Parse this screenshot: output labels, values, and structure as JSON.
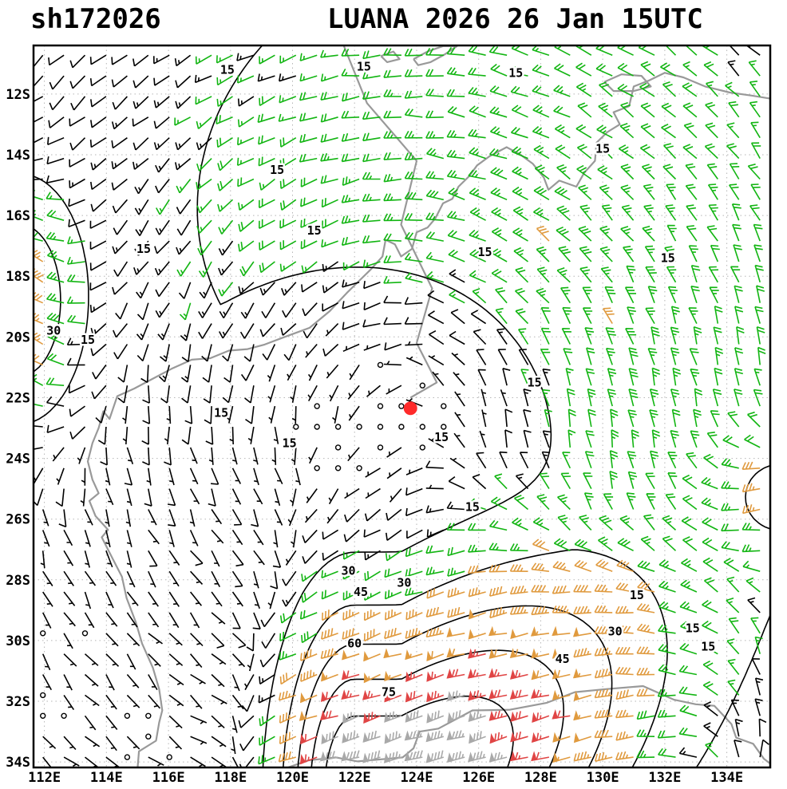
{
  "header": {
    "left_title": "sh172026",
    "right_title": "LUANA 2026 26 Jan 15UTC"
  },
  "axes": {
    "lon_min": 111.65,
    "lon_max": 135.4,
    "lat_max": -10.4,
    "lat_min": -34.18,
    "x_ticks": [
      {
        "lon": 112,
        "label": "112E"
      },
      {
        "lon": 114,
        "label": "114E"
      },
      {
        "lon": 116,
        "label": "116E"
      },
      {
        "lon": 118,
        "label": "118E"
      },
      {
        "lon": 120,
        "label": "120E"
      },
      {
        "lon": 122,
        "label": "122E"
      },
      {
        "lon": 124,
        "label": "124E"
      },
      {
        "lon": 126,
        "label": "126E"
      },
      {
        "lon": 128,
        "label": "128E"
      },
      {
        "lon": 130,
        "label": "130E"
      },
      {
        "lon": 132,
        "label": "132E"
      },
      {
        "lon": 134,
        "label": "134E"
      }
    ],
    "y_ticks": [
      {
        "lat": -12,
        "label": "12S"
      },
      {
        "lat": -14,
        "label": "14S"
      },
      {
        "lat": -16,
        "label": "16S"
      },
      {
        "lat": -18,
        "label": "18S"
      },
      {
        "lat": -20,
        "label": "20S"
      },
      {
        "lat": -22,
        "label": "22S"
      },
      {
        "lat": -24,
        "label": "24S"
      },
      {
        "lat": -26,
        "label": "26S"
      },
      {
        "lat": -28,
        "label": "28S"
      },
      {
        "lat": -30,
        "label": "30S"
      },
      {
        "lat": -32,
        "label": "32S"
      },
      {
        "lat": -34,
        "label": "34S"
      }
    ]
  },
  "colors": {
    "background": "#ffffff",
    "frame": "#000000",
    "grid": "#b5b5b5",
    "coast": "#999999",
    "contour": "#000000",
    "label_halo": "#ffffff"
  },
  "legend_semantics": {
    "calm": "wind < 5 kt drawn as open circle",
    "barb_speed_colors": [
      {
        "range_kt": "0-15",
        "color": "#000000"
      },
      {
        "range_kt": "15-30",
        "color": "#12b512"
      },
      {
        "range_kt": "30-60",
        "color": "#e09a3e"
      },
      {
        "range_kt": "60-75",
        "color": "#e04545"
      },
      {
        "range_kt": "75+",
        "color": "#a9a9a9"
      }
    ]
  },
  "chart_data": {
    "type": "wind-barb-analysis-map",
    "storm_id": "sh172026",
    "title": "LUANA 2026 26 Jan 15UTC",
    "storm_center": {
      "lon": 123.8,
      "lat": -22.35,
      "marker_color": "#ff2a2a",
      "marker_radius_px": 8.5
    },
    "isotach_levels_kt": [
      15,
      30,
      45,
      60,
      75
    ],
    "speed_color_thresholds": [
      {
        "max": 15,
        "color": "#000000"
      },
      {
        "max": 30,
        "color": "#12b512"
      },
      {
        "max": 60,
        "color": "#e09a3e"
      },
      {
        "max": 75,
        "color": "#e04545"
      },
      {
        "max": 999,
        "color": "#a9a9a9"
      }
    ],
    "contour_labels": [
      {
        "v": 15,
        "lon": 117.9,
        "lat": -11.2
      },
      {
        "v": 15,
        "lon": 122.3,
        "lat": -11.1
      },
      {
        "v": 15,
        "lon": 127.2,
        "lat": -11.3
      },
      {
        "v": 15,
        "lon": 130.0,
        "lat": -13.8
      },
      {
        "v": 15,
        "lon": 119.5,
        "lat": -14.5
      },
      {
        "v": 15,
        "lon": 115.2,
        "lat": -17.1
      },
      {
        "v": 15,
        "lon": 120.7,
        "lat": -16.5
      },
      {
        "v": 15,
        "lon": 126.2,
        "lat": -17.2
      },
      {
        "v": 15,
        "lon": 132.1,
        "lat": -17.4
      },
      {
        "v": 15,
        "lon": 113.4,
        "lat": -20.1
      },
      {
        "v": 15,
        "lon": 127.8,
        "lat": -21.5
      },
      {
        "v": 15,
        "lon": 117.7,
        "lat": -22.5
      },
      {
        "v": 15,
        "lon": 119.9,
        "lat": -23.5
      },
      {
        "v": 15,
        "lon": 124.8,
        "lat": -23.3
      },
      {
        "v": 15,
        "lon": 125.8,
        "lat": -25.6
      },
      {
        "v": 15,
        "lon": 131.1,
        "lat": -28.5
      },
      {
        "v": 15,
        "lon": 132.9,
        "lat": -29.6
      },
      {
        "v": 15,
        "lon": 133.4,
        "lat": -30.2
      },
      {
        "v": 30,
        "lon": 112.3,
        "lat": -19.8
      },
      {
        "v": 30,
        "lon": 121.8,
        "lat": -27.7
      },
      {
        "v": 30,
        "lon": 123.6,
        "lat": -28.1
      },
      {
        "v": 30,
        "lon": 130.4,
        "lat": -29.7
      },
      {
        "v": 45,
        "lon": 122.2,
        "lat": -28.4
      },
      {
        "v": 45,
        "lon": 128.7,
        "lat": -30.6
      },
      {
        "v": 60,
        "lon": 122.0,
        "lat": -30.1
      },
      {
        "v": 75,
        "lon": 123.1,
        "lat": -31.7
      }
    ],
    "barb_grid": {
      "lon_start": 111.95,
      "lat_start": -10.72,
      "step": 0.68,
      "cols": 35,
      "rows": 35
    },
    "wind_model": {
      "vortex": {
        "center": [
          123.8,
          -22.35
        ],
        "rm": 7.0,
        "vmax": 26,
        "inner_exp": 1.25,
        "decay": 14,
        "asym_base": 0.7,
        "asym_amp": 0.45,
        "asym_phase_deg": 45
      },
      "jet": {
        "amp": 92,
        "axis_lat": -35.2,
        "width": 6.0,
        "tilt_from_lon": 123.5,
        "tilt_rate": 0.55,
        "core_lon": [
          122.0,
          123.5
        ],
        "sigma_west": 2.2,
        "sigma_east": 8.0,
        "dir_deg": 15
      },
      "blobs": [
        {
          "name": "nw_monsoon_jet",
          "amp": 46,
          "center": [
            111.2,
            -18.8
          ],
          "sigma_lon": 2.0,
          "sigma_lat": 3.8,
          "dir_deg": -40
        },
        {
          "name": "ne_streak",
          "amp": 36,
          "center": [
            135.8,
            -25.3
          ],
          "sigma_lon": 2.3,
          "sigma_lat": 2.2,
          "dir_deg": 35
        }
      ]
    },
    "coastlines": [
      [
        [
          135.4,
          -12.15
        ],
        [
          134.8,
          -12.05
        ],
        [
          134.1,
          -11.95
        ],
        [
          133.3,
          -11.75
        ],
        [
          132.6,
          -11.45
        ],
        [
          132.0,
          -11.3
        ],
        [
          131.5,
          -11.55
        ],
        [
          131.0,
          -11.75
        ],
        [
          130.85,
          -12.4
        ],
        [
          130.35,
          -12.6
        ],
        [
          130.55,
          -13.0
        ],
        [
          130.15,
          -13.25
        ],
        [
          129.8,
          -13.6
        ],
        [
          129.75,
          -14.2
        ],
        [
          129.4,
          -14.6
        ],
        [
          129.15,
          -15.05
        ],
        [
          128.6,
          -14.85
        ],
        [
          128.25,
          -15.15
        ],
        [
          128.1,
          -14.75
        ],
        [
          127.75,
          -14.3
        ],
        [
          127.35,
          -14.0
        ],
        [
          126.9,
          -13.75
        ],
        [
          126.35,
          -14.05
        ],
        [
          125.95,
          -14.35
        ],
        [
          125.7,
          -14.7
        ],
        [
          125.35,
          -15.05
        ],
        [
          125.15,
          -15.45
        ],
        [
          124.85,
          -15.6
        ],
        [
          124.6,
          -16.1
        ],
        [
          124.35,
          -16.4
        ],
        [
          124.0,
          -16.55
        ],
        [
          123.85,
          -17.1
        ],
        [
          123.5,
          -17.35
        ],
        [
          123.3,
          -16.95
        ],
        [
          123.0,
          -16.8
        ],
        [
          122.9,
          -17.35
        ],
        [
          122.5,
          -17.8
        ],
        [
          122.2,
          -18.1
        ],
        [
          121.75,
          -18.55
        ],
        [
          121.2,
          -19.15
        ],
        [
          120.55,
          -19.7
        ],
        [
          119.75,
          -20.0
        ],
        [
          119.1,
          -20.25
        ],
        [
          118.55,
          -20.4
        ],
        [
          117.95,
          -20.45
        ],
        [
          117.35,
          -20.7
        ],
        [
          116.75,
          -20.75
        ],
        [
          116.1,
          -21.05
        ],
        [
          115.45,
          -21.4
        ],
        [
          114.9,
          -21.7
        ],
        [
          114.35,
          -21.95
        ],
        [
          114.2,
          -22.4
        ],
        [
          114.1,
          -22.7
        ],
        [
          113.9,
          -22.45
        ],
        [
          113.75,
          -23.0
        ],
        [
          113.55,
          -23.5
        ],
        [
          113.4,
          -24.1
        ],
        [
          113.55,
          -24.7
        ],
        [
          113.75,
          -25.15
        ],
        [
          113.45,
          -25.4
        ],
        [
          113.65,
          -25.9
        ],
        [
          114.05,
          -26.35
        ],
        [
          113.85,
          -26.6
        ],
        [
          114.2,
          -27.3
        ],
        [
          114.5,
          -27.9
        ],
        [
          114.65,
          -28.6
        ],
        [
          114.95,
          -29.4
        ],
        [
          115.15,
          -30.1
        ],
        [
          115.5,
          -30.9
        ],
        [
          115.7,
          -31.6
        ],
        [
          115.8,
          -32.3
        ],
        [
          115.7,
          -32.7
        ],
        [
          115.6,
          -33.3
        ],
        [
          115.05,
          -33.65
        ],
        [
          115.0,
          -34.25
        ]
      ],
      [
        [
          119.8,
          -34.2
        ],
        [
          120.5,
          -33.95
        ],
        [
          121.4,
          -33.85
        ],
        [
          122.1,
          -33.98
        ],
        [
          123.0,
          -33.9
        ],
        [
          123.55,
          -33.85
        ],
        [
          123.9,
          -33.55
        ],
        [
          124.1,
          -33.0
        ],
        [
          124.7,
          -32.9
        ],
        [
          125.8,
          -32.3
        ],
        [
          127.0,
          -32.28
        ],
        [
          128.2,
          -32.05
        ],
        [
          129.1,
          -31.7
        ],
        [
          130.1,
          -31.6
        ],
        [
          131.3,
          -31.5
        ],
        [
          132.3,
          -31.95
        ],
        [
          133.0,
          -32.1
        ],
        [
          133.6,
          -32.15
        ],
        [
          134.15,
          -32.75
        ],
        [
          134.3,
          -33.2
        ],
        [
          134.85,
          -33.4
        ],
        [
          135.2,
          -33.9
        ],
        [
          135.4,
          -34.05
        ]
      ],
      [
        [
          123.9,
          -10.85
        ],
        [
          124.35,
          -10.6
        ],
        [
          124.85,
          -10.42
        ],
        [
          125.3,
          -10.42
        ],
        [
          124.9,
          -10.7
        ],
        [
          124.45,
          -10.95
        ],
        [
          124.05,
          -11.05
        ],
        [
          123.9,
          -10.85
        ]
      ],
      [
        [
          122.85,
          -10.75
        ],
        [
          123.25,
          -10.6
        ],
        [
          123.45,
          -10.85
        ],
        [
          123.05,
          -10.95
        ],
        [
          122.85,
          -10.75
        ]
      ],
      [
        [
          130.05,
          -11.6
        ],
        [
          130.6,
          -11.35
        ],
        [
          131.25,
          -11.4
        ],
        [
          131.55,
          -11.75
        ],
        [
          131.0,
          -11.9
        ],
        [
          130.35,
          -11.9
        ],
        [
          130.05,
          -11.6
        ]
      ],
      [
        [
          121.65,
          -10.4
        ],
        [
          122.4,
          -12.3
        ],
        [
          124.0,
          -14.2
        ],
        [
          123.5,
          -16.3
        ],
        [
          124.5,
          -18.4
        ],
        [
          124.0,
          -20.2
        ],
        [
          124.65,
          -21.5
        ],
        [
          123.8,
          -22.0
        ]
      ]
    ]
  }
}
